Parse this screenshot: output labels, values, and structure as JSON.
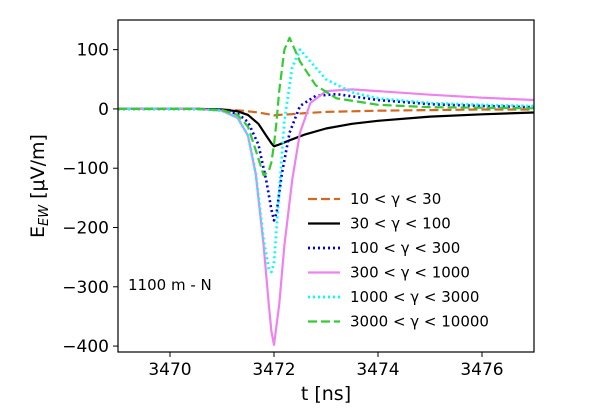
{
  "chart_data": {
    "type": "line",
    "xlabel": "t [ns]",
    "ylabel": "E_EW [μV/m]",
    "ylabel_main": "E",
    "ylabel_sub": "EW",
    "ylabel_unit": " [μV/m]",
    "xlim": [
      3469.0,
      3477.0
    ],
    "ylim": [
      -410,
      150
    ],
    "xticks": [
      3470,
      3472,
      3474,
      3476
    ],
    "xtick_labels": [
      "3470",
      "3472",
      "3474",
      "3476"
    ],
    "yticks": [
      100,
      0,
      -100,
      -200,
      -300,
      -400
    ],
    "ytick_labels": [
      "100",
      "0",
      "−100",
      "−200",
      "−300",
      "−400"
    ],
    "annotation": "1100 m - N",
    "legend_location": "lower-right",
    "grid": false,
    "series": [
      {
        "name": "10 < γ < 30",
        "color": "#d2691e",
        "dash": "dashed",
        "x": [
          3469.0,
          3470.5,
          3471.0,
          3471.4,
          3471.7,
          3471.9,
          3472.0,
          3472.1,
          3472.3,
          3472.6,
          3473.0,
          3474.0,
          3475.0,
          3476.0,
          3477.0
        ],
        "y": [
          0,
          0,
          -1,
          -3,
          -6,
          -9,
          -11,
          -10,
          -9,
          -7,
          -5,
          -3,
          -2,
          -1,
          -1
        ]
      },
      {
        "name": "30 < γ < 100",
        "color": "#000000",
        "dash": "solid",
        "x": [
          3469.0,
          3470.5,
          3471.0,
          3471.3,
          3471.5,
          3471.7,
          3471.85,
          3471.95,
          3472.0,
          3472.1,
          3472.3,
          3472.6,
          3473.0,
          3473.5,
          3474.0,
          3475.0,
          3476.0,
          3477.0
        ],
        "y": [
          0,
          0,
          -1,
          -4,
          -10,
          -25,
          -45,
          -58,
          -63,
          -60,
          -53,
          -43,
          -33,
          -25,
          -20,
          -13,
          -9,
          -6
        ]
      },
      {
        "name": "100 < γ < 300",
        "color": "#0000dd",
        "dash": "dotted",
        "x": [
          3469.0,
          3470.5,
          3471.0,
          3471.3,
          3471.5,
          3471.7,
          3471.85,
          3471.95,
          3472.0,
          3472.05,
          3472.15,
          3472.3,
          3472.5,
          3472.8,
          3473.2,
          3474.0,
          3475.0,
          3476.0,
          3477.0
        ],
        "y": [
          0,
          0,
          -2,
          -8,
          -22,
          -60,
          -120,
          -170,
          -188,
          -175,
          -110,
          -40,
          5,
          22,
          25,
          15,
          8,
          5,
          3
        ]
      },
      {
        "name": "300 < γ < 1000",
        "color": "#ee82ee",
        "dash": "solid",
        "x": [
          3469.0,
          3470.5,
          3471.0,
          3471.3,
          3471.5,
          3471.65,
          3471.8,
          3471.9,
          3471.95,
          3472.0,
          3472.1,
          3472.2,
          3472.35,
          3472.5,
          3472.7,
          3473.0,
          3473.5,
          3474.0,
          3475.0,
          3476.0,
          3477.0
        ],
        "y": [
          0,
          0,
          -3,
          -15,
          -45,
          -110,
          -230,
          -330,
          -375,
          -398,
          -330,
          -230,
          -120,
          -40,
          10,
          30,
          33,
          30,
          24,
          19,
          15
        ]
      },
      {
        "name": "1000 < γ < 3000",
        "color": "#00ffff",
        "dash": "dotted",
        "x": [
          3469.0,
          3470.5,
          3471.0,
          3471.3,
          3471.5,
          3471.65,
          3471.8,
          3471.9,
          3471.95,
          3472.0,
          3472.1,
          3472.2,
          3472.35,
          3472.5,
          3472.7,
          3473.0,
          3473.5,
          3474.0,
          3475.0,
          3476.0,
          3477.0
        ],
        "y": [
          0,
          0,
          -3,
          -15,
          -45,
          -110,
          -220,
          -270,
          -275,
          -260,
          -140,
          -20,
          70,
          100,
          80,
          50,
          28,
          18,
          10,
          7,
          5
        ]
      },
      {
        "name": "3000 < γ < 10000",
        "color": "#33cc33",
        "dash": "dashed",
        "x": [
          3469.0,
          3470.5,
          3471.0,
          3471.3,
          3471.5,
          3471.65,
          3471.8,
          3471.9,
          3471.95,
          3472.0,
          3472.05,
          3472.1,
          3472.2,
          3472.3,
          3472.5,
          3472.8,
          3473.2,
          3474.0,
          3475.0,
          3476.0,
          3477.0
        ],
        "y": [
          0,
          0,
          -2,
          -10,
          -30,
          -70,
          -112,
          -105,
          -90,
          -60,
          -20,
          30,
          100,
          120,
          80,
          40,
          18,
          7,
          3,
          2,
          1
        ]
      }
    ]
  }
}
